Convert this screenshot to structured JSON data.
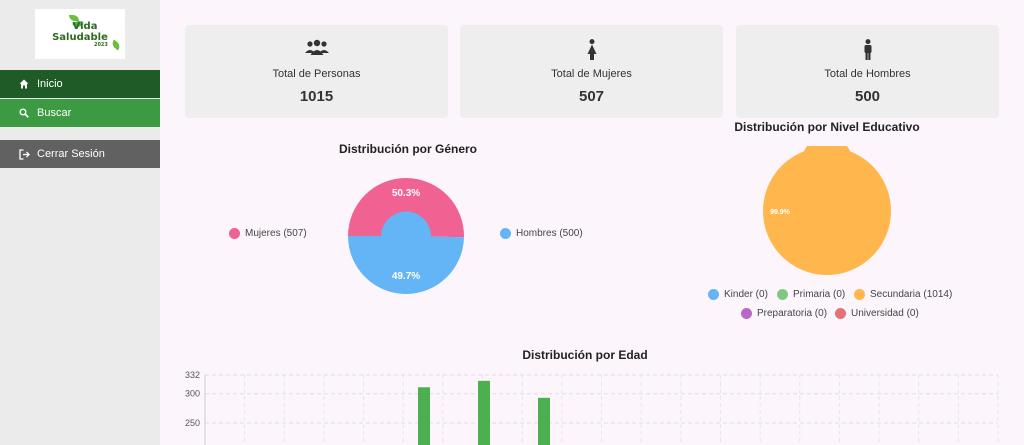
{
  "logo": {
    "line1": "Vida",
    "line2": "Saludable",
    "line3": "2023"
  },
  "sidebar": {
    "items": [
      {
        "label": "Inicio",
        "icon": "home-icon"
      },
      {
        "label": "Buscar",
        "icon": "search-icon"
      },
      {
        "label": "Cerrar Sesión",
        "icon": "logout-icon"
      }
    ]
  },
  "cards": [
    {
      "label": "Total de Personas",
      "value": "1015",
      "icon": "people-icon"
    },
    {
      "label": "Total de Mujeres",
      "value": "507",
      "icon": "female-icon"
    },
    {
      "label": "Total de Hombres",
      "value": "500",
      "icon": "male-icon"
    }
  ],
  "colors": {
    "pink": "#f06292",
    "blue": "#64b5f6",
    "orange": "#ffb74d",
    "green": "#81c784",
    "purple": "#ba68c8",
    "red": "#e57373",
    "bar": "#4caf50"
  },
  "chart_data": [
    {
      "type": "pie",
      "title": "Distribución por Género",
      "categories": [
        "Mujeres (507)",
        "Hombres (500)"
      ],
      "values": [
        507,
        500
      ],
      "data_labels": [
        "50.3%",
        "49.7%"
      ]
    },
    {
      "type": "pie",
      "title": "Distribución por Nivel Educativo",
      "categories": [
        "Kinder (0)",
        "Primaria (0)",
        "Secundaria (1014)",
        "Preparatoria (0)",
        "Universidad (0)"
      ],
      "values": [
        0,
        0,
        1014,
        0,
        0
      ],
      "data_labels": [
        "99.9%"
      ]
    },
    {
      "type": "bar",
      "title": "Distribución por Edad",
      "y_ticks": [
        "332",
        "300",
        "250"
      ],
      "ylim": [
        250,
        332
      ],
      "values": [
        311,
        322,
        293
      ]
    }
  ]
}
